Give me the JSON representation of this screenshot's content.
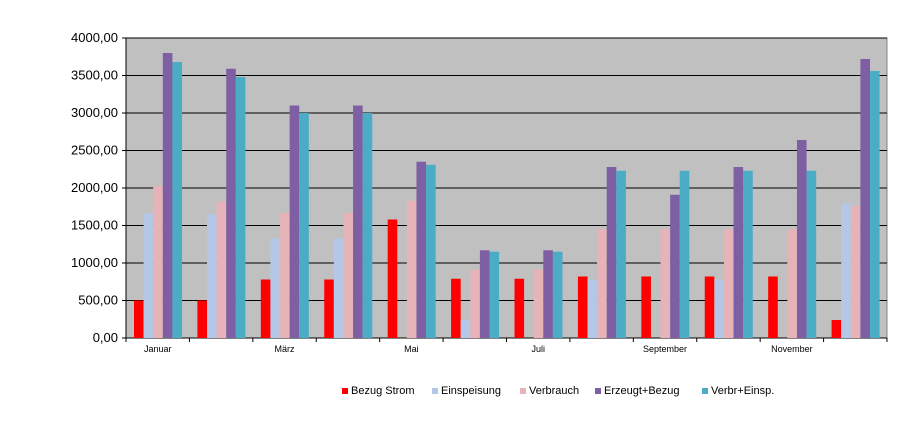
{
  "chart_data": {
    "type": "bar",
    "categories": [
      "Januar",
      "",
      "März",
      "",
      "Mai",
      "",
      "Juli",
      "",
      "September",
      "",
      "November",
      ""
    ],
    "series": [
      {
        "name": "Bezug Strom",
        "color": "#ff0000",
        "values": [
          500,
          500,
          780,
          780,
          1580,
          790,
          790,
          820,
          820,
          820,
          820,
          240
        ]
      },
      {
        "name": "Einspeisung",
        "color": "#b4c7e7",
        "values": [
          1660,
          1650,
          1330,
          1330,
          0,
          240,
          0,
          780,
          0,
          780,
          0,
          1790
        ]
      },
      {
        "name": "Verbrauch",
        "color": "#e6b4b8",
        "values": [
          2030,
          1820,
          1670,
          1670,
          1830,
          910,
          910,
          1450,
          1450,
          1450,
          1450,
          1760
        ]
      },
      {
        "name": "Erzeugt+Bezug",
        "color": "#7f5fa3",
        "values": [
          3800,
          3590,
          3100,
          3100,
          2350,
          1170,
          1170,
          2280,
          1910,
          2280,
          2640,
          3720
        ]
      },
      {
        "name": "Verbr+Einsp.",
        "color": "#4bacc6",
        "values": [
          3680,
          3480,
          3000,
          3000,
          2310,
          1150,
          1150,
          2230,
          2230,
          2230,
          2230,
          3560
        ]
      }
    ],
    "y_ticks": [
      "0,00",
      "500,00",
      "1000,00",
      "1500,00",
      "2000,00",
      "2500,00",
      "3000,00",
      "3500,00",
      "4000,00"
    ],
    "ylim": [
      0,
      4000
    ],
    "grid": true,
    "plot_background": "#c0c0c0",
    "legend_position": "bottom"
  }
}
